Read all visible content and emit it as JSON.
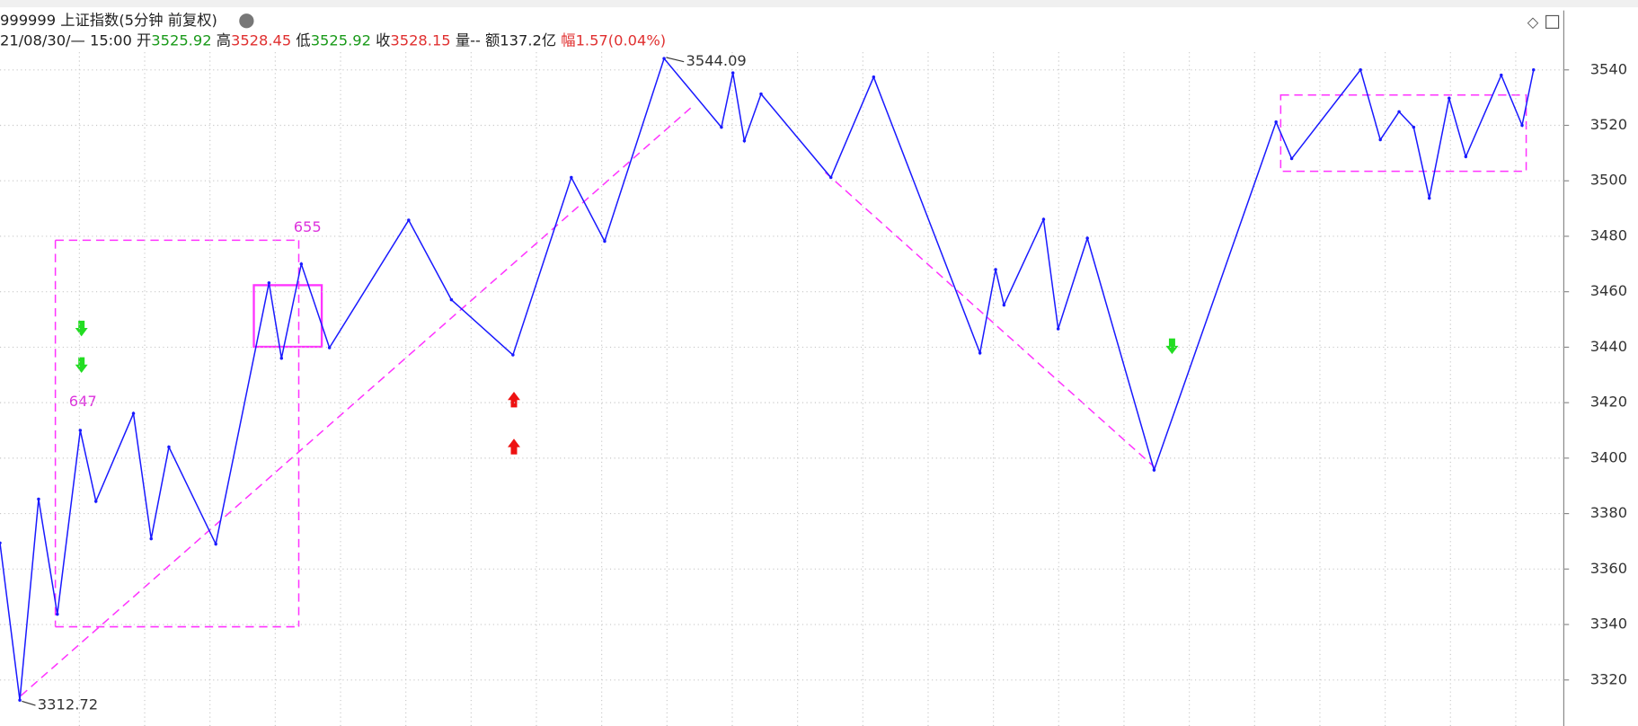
{
  "header": {
    "title": "999999 上证指数(5分钟 前复权)",
    "datetime": "21/08/30/— 15:00",
    "open_label": "开",
    "open": "3525.92",
    "high_label": "高",
    "high": "3528.45",
    "low_label": "低",
    "low": "3525.92",
    "close_label": "收",
    "close": "3528.15",
    "volume": "量--",
    "amount": "额137.2亿",
    "change": "幅1.57(0.04%)"
  },
  "chart_data": {
    "type": "line",
    "series": [
      {
        "name": "zigzag",
        "color": "#1a1aff",
        "x": [
          0,
          19,
          37,
          55,
          77,
          92,
          128,
          145,
          162,
          207,
          258,
          270,
          289,
          316,
          392,
          433,
          492,
          548,
          580,
          637,
          692,
          703,
          714,
          730,
          797,
          838,
          940,
          955,
          963,
          1001,
          1015,
          1043,
          1107,
          1224,
          1239,
          1305,
          1324,
          1342,
          1356,
          1371,
          1390,
          1406,
          1440,
          1460,
          1471
        ],
        "values": [
          3369.4,
          3312.72,
          3385.2,
          3343.7,
          3410,
          3384.4,
          3416.1,
          3370.9,
          3404,
          3369,
          3463.2,
          3436,
          3470,
          3439.8,
          3485.8,
          3457.1,
          3437.2,
          3501.2,
          3478.2,
          3544.09,
          3519.3,
          3538.9,
          3514.4,
          3531.3,
          3501.2,
          3537.4,
          3437.9,
          3468,
          3455.2,
          3486.1,
          3446.6,
          3479.3,
          3395.7,
          3521.2,
          3508,
          3540,
          3514.8,
          3524.9,
          3519.3,
          3493.7,
          3529.8,
          3508.7,
          3538.1,
          3520,
          3540
        ]
      }
    ],
    "xlim": [
      0,
      1500
    ],
    "ylim": [
      3303.4,
      3565.2
    ],
    "yticks": [
      3320,
      3340,
      3360,
      3380,
      3400,
      3420,
      3440,
      3460,
      3480,
      3500,
      3520,
      3540
    ],
    "annotations": [
      "655",
      "647"
    ],
    "grid": true
  }
}
